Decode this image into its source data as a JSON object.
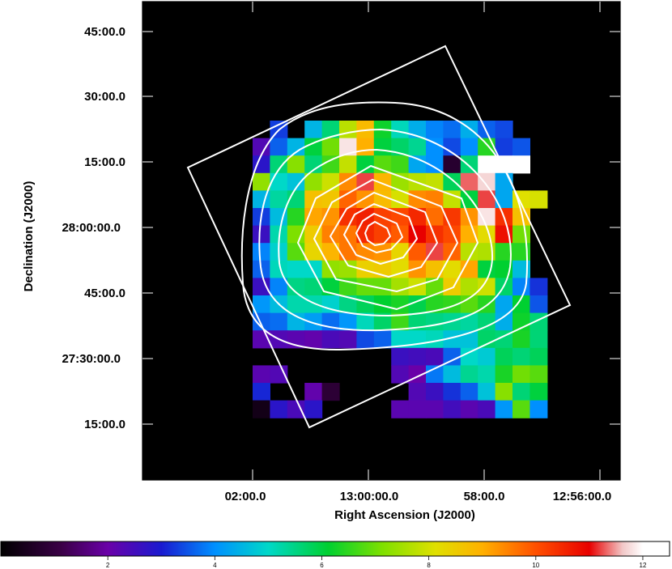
{
  "chart_data": {
    "type": "heatmap",
    "title": "",
    "xlabel": "Right Ascension (J2000)",
    "ylabel": "Declination (J2000)",
    "x_tick_labels": [
      "02:00.0",
      "13:00:00.0",
      "58:00.0",
      "12:56:00.0"
    ],
    "y_tick_labels": [
      "45:00.0",
      "30:00.0",
      "15:00.0",
      "28:00:00.0",
      "45:00.0",
      "27:30:00.0",
      "15:00.0"
    ],
    "colorbar": {
      "ticks": [
        2,
        4,
        6,
        8,
        10,
        12
      ],
      "range": [
        0,
        12.5
      ],
      "colormap": "rainbow (black-purple-blue-cyan-green-yellow-red-white)"
    },
    "grid_origin_ra": "13:01:30",
    "grid_cell_ra_arcsec": 5,
    "grid_cell_dec_arcmin": 3.75,
    "grid": [
      [
        -1,
        3.3,
        -1,
        4.5,
        5.6,
        7.7,
        8.8,
        6.2,
        5.1,
        4.4,
        3.9,
        3.7,
        4.4,
        3.6,
        3.4,
        -1,
        -1
      ],
      [
        2.3,
        3.6,
        4.5,
        6.0,
        7.0,
        11.8,
        9.0,
        6.0,
        5.7,
        5.4,
        4.0,
        3.4,
        4.0,
        6.4,
        3.3,
        3.5,
        -1
      ],
      [
        2.8,
        5.6,
        7.2,
        5.6,
        6.6,
        7.8,
        6.0,
        6.8,
        6.6,
        4.3,
        4.0,
        0.8,
        5.6,
        12.2,
        12.2,
        12.2,
        -1
      ],
      [
        7.3,
        5.0,
        4.7,
        7.3,
        7.9,
        9.4,
        11.2,
        8.9,
        7.4,
        7.7,
        7.8,
        5.8,
        11.3,
        11.7,
        4.3,
        -1,
        -1
      ],
      [
        4.5,
        5.3,
        5.6,
        8.7,
        8.6,
        9.8,
        9.3,
        8.8,
        8.0,
        9.4,
        9.5,
        7.8,
        6.0,
        11.2,
        4.3,
        8.1,
        8.0
      ],
      [
        3.3,
        4.6,
        6.4,
        9.1,
        9.3,
        10.4,
        10.6,
        10.2,
        10.1,
        10.5,
        9.7,
        10.3,
        9.3,
        11.8,
        10.4,
        8.7,
        -1
      ],
      [
        2.6,
        5.2,
        7.1,
        8.5,
        9.5,
        9.6,
        10.5,
        10.2,
        9.9,
        11.0,
        10.4,
        10.1,
        9.0,
        8.2,
        10.8,
        7.0,
        -1
      ],
      [
        3.9,
        4.9,
        6.8,
        8.3,
        8.9,
        9.6,
        9.4,
        9.3,
        8.3,
        9.9,
        11.2,
        9.8,
        7.7,
        7.6,
        6.4,
        6.4,
        -1
      ],
      [
        3.6,
        5.1,
        5.0,
        5.0,
        7.3,
        7.4,
        8.4,
        8.5,
        8.2,
        9.3,
        8.7,
        8.2,
        9.1,
        6.0,
        6.1,
        4.6,
        -1
      ],
      [
        2.6,
        3.9,
        5.5,
        5.6,
        6.0,
        6.6,
        6.9,
        6.9,
        7.5,
        7.9,
        6.9,
        8.5,
        7.6,
        7.9,
        5.7,
        3.9,
        3.2
      ],
      [
        4.1,
        4.6,
        5.2,
        5.2,
        4.9,
        5.5,
        5.8,
        6.1,
        6.3,
        5.9,
        6.4,
        6.5,
        6.8,
        6.4,
        4.3,
        6.1,
        3.5
      ],
      [
        3.6,
        3.7,
        4.5,
        4.2,
        3.7,
        4.1,
        5.1,
        5.7,
        6.6,
        5.6,
        5.5,
        5.4,
        5.3,
        5.6,
        4.4,
        6.2,
        5.6
      ],
      [
        2.2,
        2.3,
        2.2,
        2.1,
        2.4,
        2.3,
        3.4,
        3.6,
        5.0,
        5.0,
        5.1,
        4.7,
        4.7,
        5.7,
        5.6,
        6.3,
        5.6
      ],
      [
        -1,
        -1,
        -1,
        -1,
        -1,
        -1,
        -1,
        -1,
        2.6,
        2.5,
        2.4,
        3.6,
        5.0,
        4.8,
        5.8,
        5.6,
        5.8
      ],
      [
        2.2,
        2.3,
        -1,
        -1,
        0,
        0,
        -1,
        -1,
        2.3,
        2.0,
        3.8,
        4.6,
        5.4,
        5.2,
        6.3,
        7.0,
        6.8
      ],
      [
        3.1,
        -1,
        -1,
        2.1,
        0.9,
        -1,
        -1,
        -1,
        -1,
        2.3,
        2.6,
        3.2,
        3.6,
        4.7,
        7.2,
        5.6,
        6.0
      ],
      [
        0.4,
        2.8,
        2.4,
        2.8,
        -1,
        -1,
        -1,
        -1,
        2.2,
        2.2,
        2.2,
        2.5,
        2.2,
        2.4,
        4.1,
        6.8,
        4.0
      ]
    ]
  }
}
